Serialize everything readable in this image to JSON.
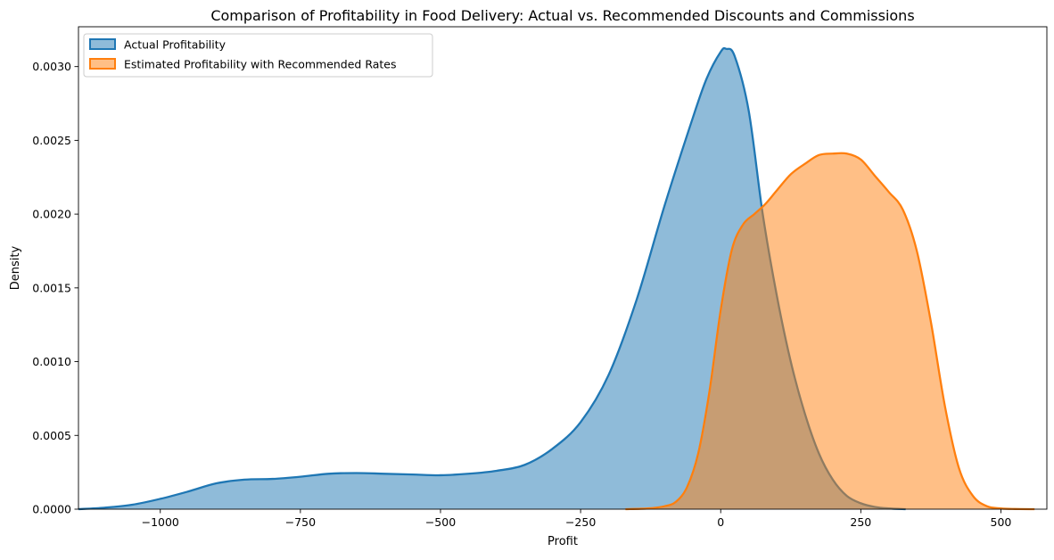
{
  "chart_data": {
    "type": "area",
    "title": "Comparison of Profitability in Food Delivery: Actual vs. Recommended Discounts and Commissions",
    "xlabel": "Profit",
    "ylabel": "Density",
    "xlim": [
      -1146,
      582
    ],
    "ylim": [
      0,
      0.00327
    ],
    "x_ticks": [
      -1000,
      -750,
      -500,
      -250,
      0,
      250,
      500
    ],
    "x_tick_labels": [
      "−1000",
      "−750",
      "−500",
      "−250",
      "0",
      "250",
      "500"
    ],
    "y_ticks": [
      0,
      0.0005,
      0.001,
      0.0015,
      0.002,
      0.0025,
      0.003
    ],
    "y_tick_labels": [
      "0.0000",
      "0.0005",
      "0.0010",
      "0.0015",
      "0.0020",
      "0.0025",
      "0.0030"
    ],
    "grid": false,
    "legend_position": "top-left",
    "series": [
      {
        "name": "Actual Profitability",
        "color": "#1f77b4",
        "fill_opacity": 0.5,
        "x": [
          -1146,
          -1100,
          -1050,
          -1000,
          -950,
          -900,
          -850,
          -800,
          -750,
          -700,
          -650,
          -600,
          -550,
          -500,
          -450,
          -400,
          -350,
          -300,
          -250,
          -200,
          -150,
          -100,
          -50,
          -25,
          0,
          10,
          25,
          50,
          75,
          100,
          125,
          150,
          175,
          200,
          225,
          250,
          275,
          300,
          330
        ],
        "values": [
          0.0,
          1e-05,
          3e-05,
          7e-05,
          0.00012,
          0.000175,
          0.0002,
          0.000205,
          0.00022,
          0.00024,
          0.000245,
          0.00024,
          0.000235,
          0.00023,
          0.00024,
          0.00026,
          0.0003,
          0.00041,
          0.00059,
          0.00091,
          0.00142,
          0.00206,
          0.00265,
          0.00292,
          0.0031,
          0.00312,
          0.00307,
          0.0027,
          0.002,
          0.00145,
          0.001,
          0.00065,
          0.00038,
          0.0002,
          9e-05,
          4e-05,
          1.5e-05,
          5e-06,
          0.0
        ]
      },
      {
        "name": "Estimated Profitability with Recommended Rates",
        "color": "#ff7f0e",
        "fill_opacity": 0.5,
        "x": [
          -170,
          -130,
          -100,
          -80,
          -60,
          -40,
          -20,
          0,
          20,
          40,
          60,
          80,
          100,
          125,
          150,
          175,
          200,
          225,
          250,
          275,
          300,
          325,
          350,
          375,
          400,
          425,
          450,
          475,
          500,
          525,
          560
        ],
        "values": [
          0.0,
          5e-06,
          2e-05,
          5e-05,
          0.00015,
          0.00038,
          0.0008,
          0.00135,
          0.00176,
          0.00193,
          0.002,
          0.00207,
          0.00216,
          0.00227,
          0.00234,
          0.0024,
          0.00241,
          0.00241,
          0.00237,
          0.00226,
          0.00215,
          0.00203,
          0.00175,
          0.00127,
          0.0007,
          0.00028,
          9e-05,
          2e-05,
          5e-06,
          1e-06,
          0.0
        ]
      }
    ]
  }
}
